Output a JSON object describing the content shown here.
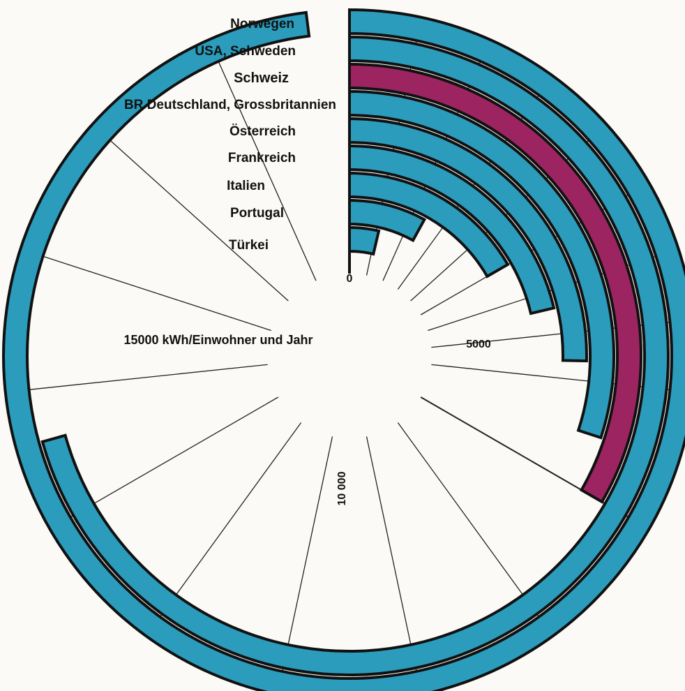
{
  "chart_data": {
    "type": "radial-bar",
    "unit_label": "15000 kWh/Einwohner und Jahr",
    "tick_labels": {
      "zero": "0",
      "five_thousand": "5000",
      "ten_thousand": "10 000"
    },
    "max": 15000,
    "categories": [
      "Norwegen",
      "USA, Schweden",
      "Schweiz",
      "BR Deutschland, Grossbritannien",
      "Österreich",
      "Frankreich",
      "Italien",
      "Portugal",
      "Türkei"
    ],
    "values": [
      14700,
      10600,
      5000,
      4500,
      3800,
      3200,
      2500,
      1200,
      550
    ],
    "highlight": "Schweiz",
    "colors": {
      "bar": "#2b9cbc",
      "highlight": "#9c2460",
      "outline": "#111111"
    },
    "grid_ticks": [
      500,
      1000,
      1500,
      2000,
      2500,
      3000,
      3500,
      4000,
      5000,
      6000,
      7000,
      8000,
      9000,
      10000,
      11000,
      12000,
      13000,
      14000
    ],
    "grid": true
  }
}
